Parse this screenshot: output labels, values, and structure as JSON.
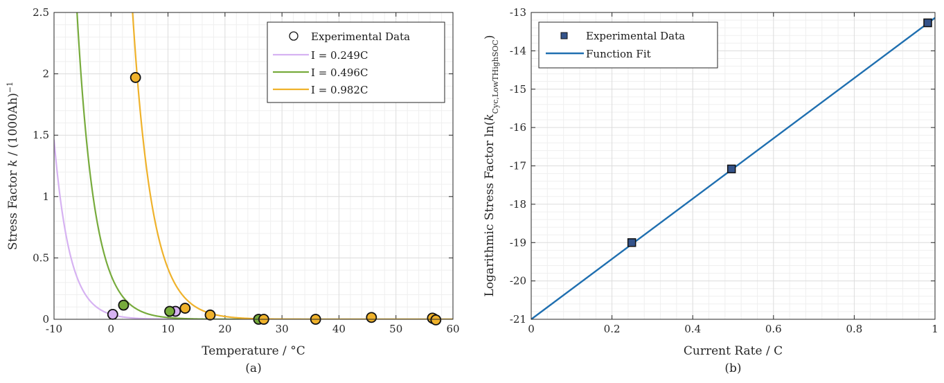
{
  "chart_data": [
    {
      "type": "scatter",
      "panel_caption": "(a)",
      "xlabel": "Temperature / °C",
      "ylabel_parts": [
        "Stress Factor ",
        "k",
        " / (1000Ah)",
        "−1"
      ],
      "xlim": [
        -10,
        60
      ],
      "ylim": [
        0,
        2.5
      ],
      "xticks": [
        -10,
        0,
        10,
        20,
        30,
        40,
        50,
        60
      ],
      "xtick_labels": [
        "-10",
        "0",
        "10",
        "20",
        "30",
        "40",
        "50",
        "60"
      ],
      "yticks": [
        0,
        0.5,
        1,
        1.5,
        2,
        2.5
      ],
      "ytick_labels": [
        "0",
        "0.5",
        "1",
        "1.5",
        "2",
        "2.5"
      ],
      "grid": true,
      "minor_grid": true,
      "legend_position": "top-right",
      "legend_marker_label": "Experimental Data",
      "series": [
        {
          "name": "I = 0.249C",
          "color": "#d6b2f2",
          "fit": {
            "model": "exponential",
            "a": 0.04,
            "b": -0.36
          },
          "points": [
            [
              0.3,
              0.04
            ],
            [
              11.3,
              0.065
            ]
          ]
        },
        {
          "name": "I = 0.496C",
          "color": "#77ab3c",
          "fit": {
            "model": "exponential",
            "a": 0.36,
            "b": -0.325
          },
          "points": [
            [
              2.2,
              0.115
            ],
            [
              10.3,
              0.065
            ],
            [
              25.9,
              0.0
            ],
            [
              56.6,
              0.005
            ]
          ]
        },
        {
          "name": "I = 0.982C",
          "color": "#efb22b",
          "fit": {
            "model": "exponential",
            "a": 7.5,
            "b": -0.29
          },
          "points": [
            [
              4.3,
              1.97
            ],
            [
              13.0,
              0.09
            ],
            [
              17.4,
              0.035
            ],
            [
              26.8,
              0.0
            ],
            [
              35.9,
              0.0
            ],
            [
              45.7,
              0.015
            ],
            [
              56.4,
              0.01
            ],
            [
              57.0,
              -0.005
            ]
          ]
        }
      ]
    },
    {
      "type": "scatter",
      "panel_caption": "(b)",
      "xlabel": "Current Rate / C",
      "ylabel_parts": [
        "Logarithmic Stress Factor ln(",
        "k",
        "Cyc,LowTHighSOC",
        ")"
      ],
      "xlim": [
        0,
        1
      ],
      "ylim": [
        -21,
        -13
      ],
      "xticks": [
        0,
        0.2,
        0.4,
        0.6,
        0.8,
        1
      ],
      "xtick_labels": [
        "0",
        "0.2",
        "0.4",
        "0.6",
        "0.8",
        "1"
      ],
      "yticks": [
        -21,
        -20,
        -19,
        -18,
        -17,
        -16,
        -15,
        -14,
        -13
      ],
      "ytick_labels": [
        "-21",
        "-20",
        "-19",
        "-18",
        "-17",
        "-16",
        "-15",
        "-14",
        "-13"
      ],
      "grid": true,
      "minor_grid": true,
      "legend_position": "top-left",
      "series": [
        {
          "name": "Experimental Data",
          "color": "#34538a",
          "marker": "square",
          "x": [
            0.249,
            0.496,
            0.982
          ],
          "y": [
            -19.0,
            -17.08,
            -13.27
          ]
        },
        {
          "name": "Function Fit",
          "color": "#1f6fb0",
          "marker": "line",
          "x": [
            0,
            1
          ],
          "y": [
            -21.0,
            -13.14
          ]
        }
      ]
    }
  ]
}
